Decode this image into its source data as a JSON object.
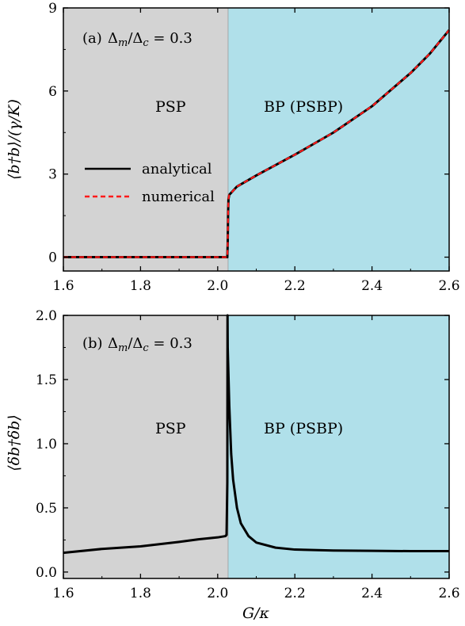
{
  "colors": {
    "psp_region": "#d3d3d3",
    "bp_region": "#b0e0ea",
    "analytical": "#000000",
    "numerical": "#ff1a1a"
  },
  "chart_data": [
    {
      "type": "line",
      "panel_label": "(a)",
      "annotation": "Δm/Δc = 0.3",
      "regions": [
        {
          "label": "PSP",
          "x_range": [
            1.6,
            2.027
          ]
        },
        {
          "label": "BP (PSBP)",
          "x_range": [
            2.027,
            2.6
          ]
        }
      ],
      "xlim": [
        1.6,
        2.6
      ],
      "ylim": [
        -0.5,
        9
      ],
      "xticks": [
        1.6,
        1.8,
        2.0,
        2.2,
        2.4,
        2.6
      ],
      "xtick_labels": [
        "1.6",
        "1.8",
        "2.0",
        "2.2",
        "2.4",
        "2.6"
      ],
      "yticks": [
        0,
        3,
        6,
        9
      ],
      "ytick_labels": [
        "0",
        "3",
        "6",
        "9"
      ],
      "ylabel": "⟨b†b⟩/(γ/K)",
      "legend_position": "center-left",
      "series": [
        {
          "name": "analytical",
          "style": "solid",
          "x": [
            1.6,
            1.8,
            2.0,
            2.025,
            2.026,
            2.027,
            2.028,
            2.03,
            2.05,
            2.1,
            2.2,
            2.3,
            2.4,
            2.5,
            2.55,
            2.6
          ],
          "y": [
            0,
            0,
            0,
            0,
            0.5,
            1.6,
            2.1,
            2.25,
            2.55,
            2.95,
            3.7,
            4.5,
            5.45,
            6.65,
            7.35,
            8.2
          ]
        },
        {
          "name": "numerical",
          "style": "dashed",
          "x": [
            1.6,
            1.8,
            2.0,
            2.025,
            2.026,
            2.027,
            2.028,
            2.03,
            2.05,
            2.1,
            2.2,
            2.3,
            2.4,
            2.5,
            2.55,
            2.6
          ],
          "y": [
            0,
            0,
            0,
            0,
            0.5,
            1.6,
            2.1,
            2.25,
            2.55,
            2.95,
            3.7,
            4.5,
            5.45,
            6.65,
            7.35,
            8.2
          ]
        }
      ]
    },
    {
      "type": "line",
      "panel_label": "(b)",
      "annotation": "Δm/Δc = 0.3",
      "regions": [
        {
          "label": "PSP",
          "x_range": [
            1.6,
            2.027
          ]
        },
        {
          "label": "BP (PSBP)",
          "x_range": [
            2.027,
            2.6
          ]
        }
      ],
      "xlim": [
        1.6,
        2.6
      ],
      "ylim": [
        -0.05,
        2.0
      ],
      "xticks": [
        1.6,
        1.8,
        2.0,
        2.2,
        2.4,
        2.6
      ],
      "xtick_labels": [
        "1.6",
        "1.8",
        "2.0",
        "2.2",
        "2.4",
        "2.6"
      ],
      "yticks": [
        0.0,
        0.5,
        1.0,
        1.5,
        2.0
      ],
      "ytick_labels": [
        "0.0",
        "0.5",
        "1.0",
        "1.5",
        "2.0"
      ],
      "xlabel": "G/κ",
      "ylabel": "⟨δb†δb⟩",
      "series": [
        {
          "name": "",
          "style": "solid",
          "x": [
            1.6,
            1.7,
            1.8,
            1.9,
            1.95,
            2.0,
            2.02,
            2.023,
            2.025,
            2.0255,
            2.026,
            2.03,
            2.035,
            2.04,
            2.05,
            2.06,
            2.08,
            2.1,
            2.15,
            2.2,
            2.3,
            2.4,
            2.5,
            2.6
          ],
          "y": [
            0.15,
            0.18,
            0.2,
            0.235,
            0.255,
            0.27,
            0.28,
            0.29,
            0.7,
            2.0,
            1.75,
            1.3,
            0.92,
            0.72,
            0.5,
            0.38,
            0.28,
            0.23,
            0.19,
            0.175,
            0.168,
            0.165,
            0.163,
            0.163
          ]
        }
      ]
    }
  ]
}
